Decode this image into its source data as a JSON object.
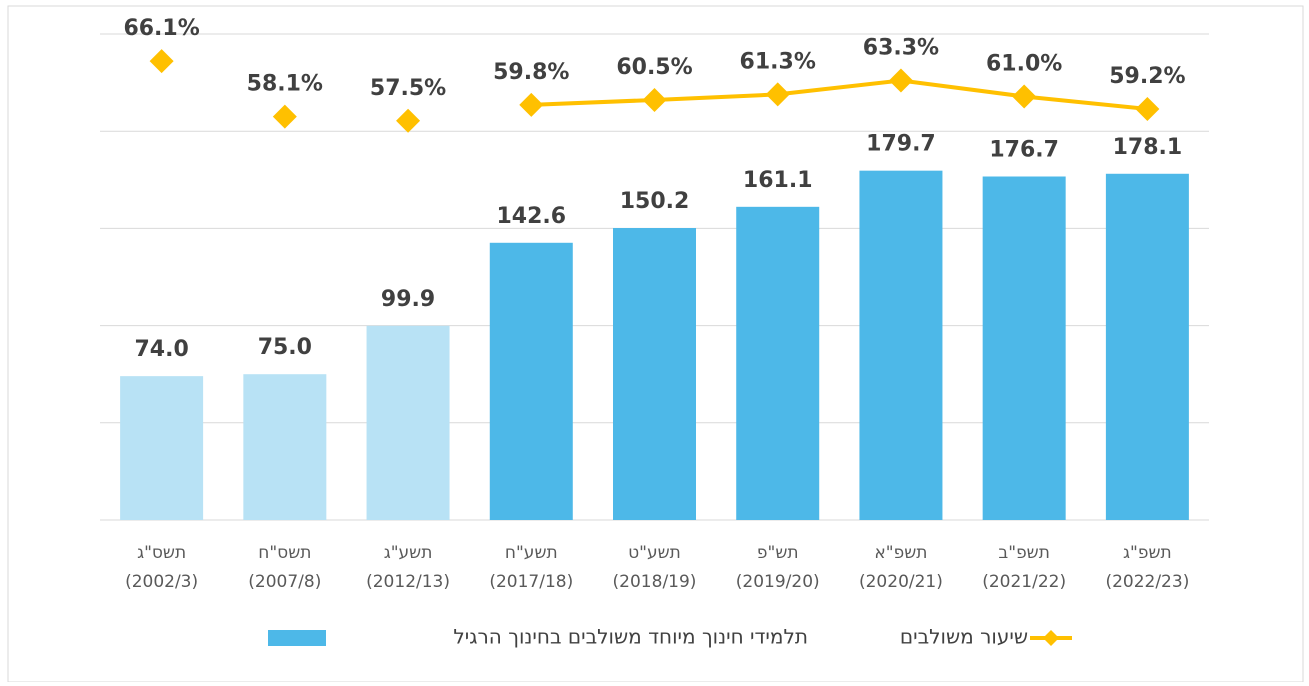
{
  "chart_data": {
    "type": "bar_line",
    "categories": [
      [
        "תשס\"ג",
        "(2002/3)"
      ],
      [
        "תשס\"ח",
        "(2007/8)"
      ],
      [
        "תשע\"ג",
        "(2012/13)"
      ],
      [
        "תשע\"ח",
        "(2017/18)"
      ],
      [
        "תשע\"ט",
        "(2018/19)"
      ],
      [
        "תש\"פ",
        "(2019/20)"
      ],
      [
        "תשפ\"א",
        "(2020/21)"
      ],
      [
        "תשפ\"ב",
        "(2021/22)"
      ],
      [
        "תשפ\"ג",
        "(2022/23)"
      ]
    ],
    "series": [
      {
        "name": "תלמידי חינוך מיוחד משולבים בחינוך הרגיל",
        "type": "bar",
        "color": "#4db8e8",
        "colors": [
          "#b8e2f5",
          "#b8e2f5",
          "#b8e2f5",
          "#4db8e8",
          "#4db8e8",
          "#4db8e8",
          "#4db8e8",
          "#4db8e8",
          "#4db8e8"
        ],
        "values": [
          74.0,
          75.0,
          99.9,
          142.6,
          150.2,
          161.1,
          179.7,
          176.7,
          178.1
        ],
        "value_labels": [
          "74.0",
          "75.0",
          "99.9",
          "142.6",
          "150.2",
          "161.1",
          "179.7",
          "176.7",
          "178.1"
        ]
      },
      {
        "name": "שיעור משולבים",
        "type": "line",
        "axis": "y2",
        "color": "#ffc000",
        "connected": [
          false,
          false,
          false,
          true,
          true,
          true,
          true,
          true,
          true
        ],
        "values": [
          66.1,
          58.1,
          57.5,
          59.8,
          60.5,
          61.3,
          63.3,
          61.0,
          59.2
        ],
        "value_labels": [
          "66.1%",
          "58.1%",
          "57.5%",
          "59.8%",
          "60.5%",
          "61.3%",
          "63.3%",
          "61.0%",
          "59.2%"
        ]
      }
    ],
    "ylim": [
      0,
      250
    ],
    "yticks": [
      0,
      50,
      100,
      150,
      200,
      250
    ],
    "y2lim": [
      0,
      70
    ],
    "grid": true,
    "legend": "bottom"
  }
}
